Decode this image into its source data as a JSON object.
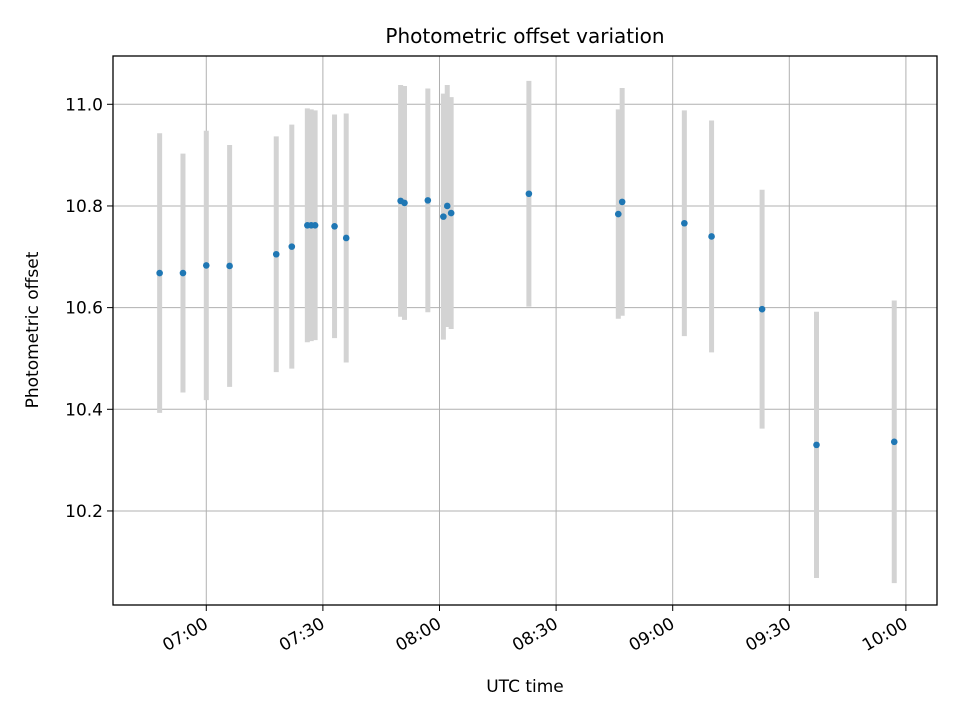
{
  "chart_data": {
    "type": "scatter",
    "title": "Photometric offset variation",
    "xlabel": "UTC time",
    "ylabel": "Photometric offset",
    "grid": true,
    "x_tick_labels": [
      "07:00",
      "07:30",
      "08:00",
      "08:30",
      "09:00",
      "09:30",
      "10:00"
    ],
    "y_tick_labels": [
      "10.2",
      "10.4",
      "10.6",
      "10.8",
      "11.0"
    ],
    "xlim": [
      "06:36",
      "10:08"
    ],
    "ylim": [
      10.015,
      11.095
    ],
    "series": [
      {
        "marker_color": "#1f77b4",
        "errorbar_color": "#d3d3d3",
        "points": [
          {
            "x": "06:48",
            "y": 10.668,
            "yerr": 0.275
          },
          {
            "x": "06:54",
            "y": 10.668,
            "yerr": 0.235
          },
          {
            "x": "07:00",
            "y": 10.683,
            "yerr": 0.265
          },
          {
            "x": "07:06",
            "y": 10.682,
            "yerr": 0.238
          },
          {
            "x": "07:18",
            "y": 10.705,
            "yerr": 0.232
          },
          {
            "x": "07:22",
            "y": 10.72,
            "yerr": 0.24
          },
          {
            "x": "07:26",
            "y": 10.762,
            "yerr": 0.23
          },
          {
            "x": "07:27",
            "y": 10.762,
            "yerr": 0.228
          },
          {
            "x": "07:28",
            "y": 10.762,
            "yerr": 0.226
          },
          {
            "x": "07:33",
            "y": 10.76,
            "yerr": 0.22
          },
          {
            "x": "07:36",
            "y": 10.737,
            "yerr": 0.245
          },
          {
            "x": "07:50",
            "y": 10.81,
            "yerr": 0.228
          },
          {
            "x": "07:51",
            "y": 10.806,
            "yerr": 0.23
          },
          {
            "x": "07:57",
            "y": 10.811,
            "yerr": 0.22
          },
          {
            "x": "08:01",
            "y": 10.779,
            "yerr": 0.242
          },
          {
            "x": "08:02",
            "y": 10.8,
            "yerr": 0.238
          },
          {
            "x": "08:03",
            "y": 10.786,
            "yerr": 0.228
          },
          {
            "x": "08:23",
            "y": 10.824,
            "yerr": 0.222
          },
          {
            "x": "08:46",
            "y": 10.784,
            "yerr": 0.206
          },
          {
            "x": "08:47",
            "y": 10.808,
            "yerr": 0.224
          },
          {
            "x": "09:03",
            "y": 10.766,
            "yerr": 0.222
          },
          {
            "x": "09:10",
            "y": 10.74,
            "yerr": 0.228
          },
          {
            "x": "09:23",
            "y": 10.597,
            "yerr": 0.235
          },
          {
            "x": "09:37",
            "y": 10.33,
            "yerr": 0.262
          },
          {
            "x": "09:57",
            "y": 10.336,
            "yerr": 0.278
          }
        ]
      }
    ]
  }
}
